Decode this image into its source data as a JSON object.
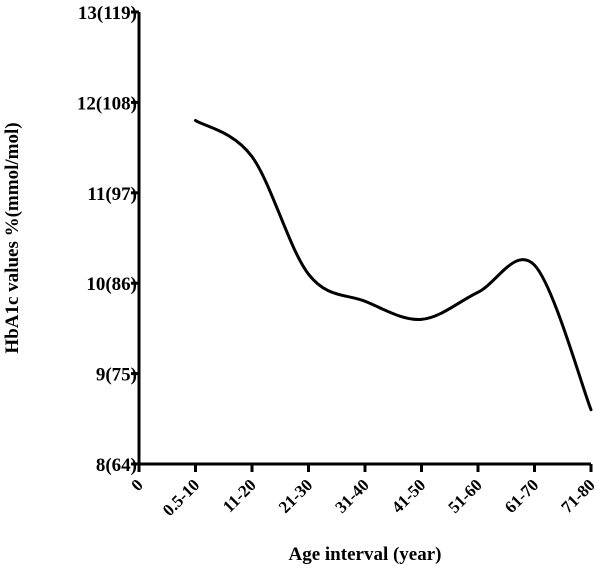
{
  "chart_data": {
    "type": "line",
    "xlabel": "Age interval (year)",
    "ylabel": "HbA1c values %(mmol/mol)",
    "x_tick_labels": [
      "0",
      "0.5-10",
      "11-20",
      "21-30",
      "31-40",
      "41-50",
      "51-60",
      "61-70",
      "71-80"
    ],
    "y_tick_labels": [
      "8(64)",
      "9(75)",
      "10(86)",
      "11(97)",
      "12(108)",
      "13(119)"
    ],
    "y_tick_values": [
      8,
      9,
      10,
      11,
      12,
      13
    ],
    "ylim": [
      8,
      13
    ],
    "grid": false,
    "smooth": true,
    "series": [
      {
        "categories": [
          "0.5-10",
          "11-20",
          "21-30",
          "31-40",
          "41-50",
          "51-60",
          "61-70",
          "71-80"
        ],
        "values": [
          11.8,
          11.4,
          10.1,
          9.8,
          9.6,
          9.9,
          10.2,
          8.6
        ]
      }
    ]
  }
}
